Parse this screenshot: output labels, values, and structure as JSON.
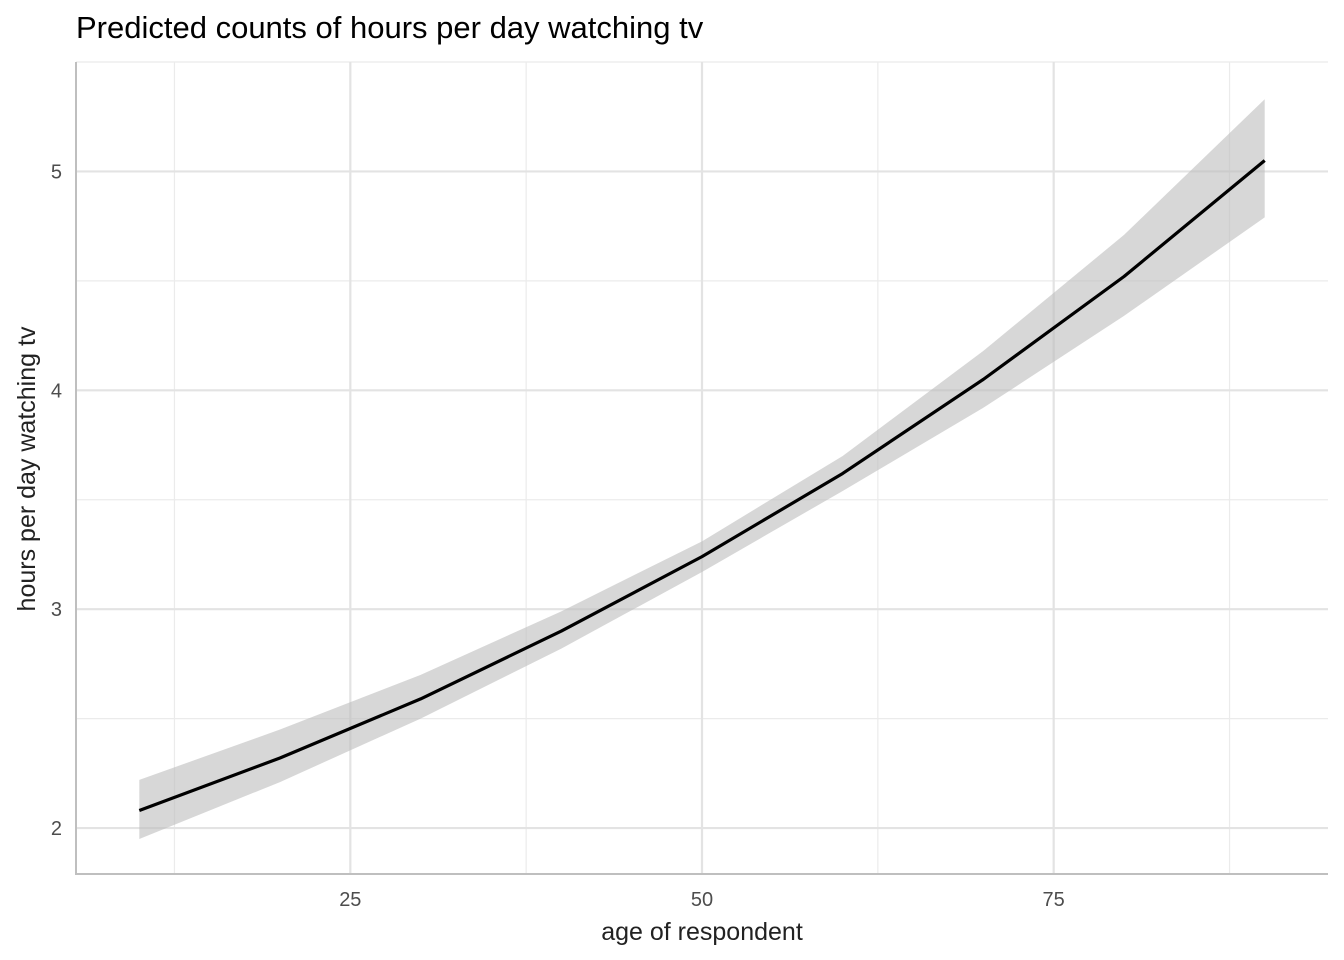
{
  "chart_data": {
    "type": "line",
    "title": "Predicted counts of hours per day watching tv",
    "xlabel": "age of respondent",
    "ylabel": "hours per day watching tv",
    "xlim": [
      5.5,
      94.5
    ],
    "ylim": [
      1.79,
      5.5
    ],
    "x_ticks": [
      25,
      50,
      75
    ],
    "x_tick_labels": [
      "25",
      "50",
      "75"
    ],
    "y_ticks": [
      2,
      3,
      4,
      5
    ],
    "y_tick_labels": [
      "2",
      "3",
      "4",
      "5"
    ],
    "grid": true,
    "line_color": "#000000",
    "band_color": "#bdbdbd",
    "series": [
      {
        "x": [
          10,
          20,
          30,
          40,
          50,
          60,
          70,
          80,
          90
        ],
        "y": [
          2.08,
          2.32,
          2.59,
          2.9,
          3.24,
          3.62,
          4.05,
          4.52,
          5.05
        ],
        "lower": [
          1.95,
          2.21,
          2.5,
          2.82,
          3.17,
          3.54,
          3.92,
          4.34,
          4.79
        ],
        "upper": [
          2.22,
          2.45,
          2.7,
          2.99,
          3.31,
          3.7,
          4.18,
          4.71,
          5.33
        ]
      }
    ]
  }
}
